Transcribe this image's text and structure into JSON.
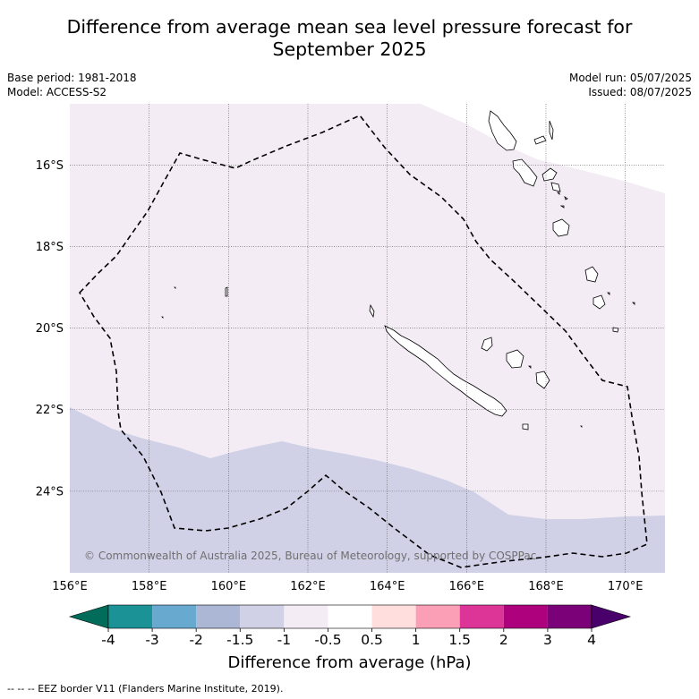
{
  "title_line1": "Difference from average mean sea level pressure forecast for",
  "title_line2": "September 2025",
  "base_period": "Base period: 1981-2018",
  "model": "Model: ACCESS-S2",
  "model_run": "Model run: 05/07/2025",
  "issued": "Issued: 08/07/2025",
  "copyright": "© Commonwealth of Australia 2025, Bureau of Meteorology, supported by COSPPac",
  "map": {
    "lon_range": [
      156.0,
      171.0
    ],
    "lat_range": [
      -26.0,
      -14.5
    ],
    "lon_ticks": [
      "156°E",
      "158°E",
      "160°E",
      "162°E",
      "164°E",
      "166°E",
      "168°E",
      "170°E"
    ],
    "lat_ticks": [
      "16°S",
      "18°S",
      "20°S",
      "22°S",
      "24°S"
    ],
    "grid": "dotted",
    "fill_north": "#f4ecf5",
    "fill_south": "#d0d1e6"
  },
  "colorbar": {
    "label": "Difference from average (hPa)",
    "tick_labels": [
      "-4",
      "-3",
      "-2",
      "-1.5",
      "-1",
      "-0.5",
      "0.5",
      "1",
      "1.5",
      "2",
      "3",
      "4"
    ],
    "colors": [
      "#1b9296",
      "#67a9cf",
      "#acb7d6",
      "#d0d1e6",
      "#f4ecf5",
      "#ffffff",
      "#ffdedd",
      "#fa9fb5",
      "#dd3497",
      "#ae017e",
      "#7a0177"
    ],
    "under_color": "#016c59",
    "over_color": "#49006a"
  },
  "legend_note": "--  --  -- EEZ border V11 (Flanders Marine Institute, 2019)."
}
